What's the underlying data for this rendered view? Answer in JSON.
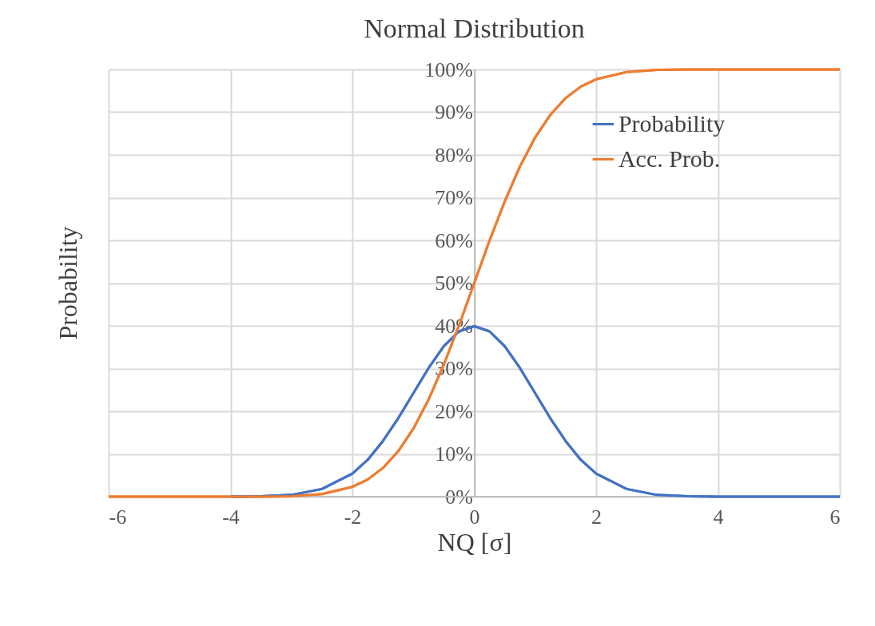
{
  "chart_data": {
    "type": "line",
    "title": "Normal Distribution",
    "xlabel": "NQ [σ]",
    "ylabel": "Probability",
    "x": [
      -6,
      -5,
      -4,
      -3.5,
      -3,
      -2.5,
      -2,
      -1.75,
      -1.5,
      -1.25,
      -1,
      -0.75,
      -0.5,
      -0.25,
      0,
      0.25,
      0.5,
      0.75,
      1,
      1.25,
      1.5,
      1.75,
      2,
      2.5,
      3,
      3.5,
      4,
      5,
      6
    ],
    "series": [
      {
        "name": "Probability",
        "color": "#4472c4",
        "values": [
          null,
          null,
          0,
          0.1,
          0.4,
          1.8,
          5.4,
          8.6,
          13.0,
          18.3,
          24.2,
          30.1,
          35.2,
          38.7,
          39.9,
          38.7,
          35.2,
          30.1,
          24.2,
          18.3,
          13.0,
          8.6,
          5.4,
          1.8,
          0.4,
          0.1,
          0,
          0,
          0
        ]
      },
      {
        "name": "Acc. Prob.",
        "color": "#ed7d31",
        "values": [
          0,
          0,
          0,
          0,
          0.1,
          0.6,
          2.3,
          4.0,
          6.7,
          10.6,
          15.9,
          22.7,
          30.9,
          40.1,
          50,
          59.9,
          69.1,
          77.3,
          84.1,
          89.4,
          93.3,
          96.0,
          97.7,
          99.4,
          99.9,
          100,
          100,
          100,
          100
        ]
      }
    ],
    "xlim": [
      -6,
      6
    ],
    "xticks": [
      -6,
      -4,
      -2,
      0,
      2,
      4,
      6
    ],
    "ylim": [
      0,
      100
    ],
    "yticks": [
      {
        "value": 0,
        "label": "0%"
      },
      {
        "value": 10,
        "label": "10%"
      },
      {
        "value": 20,
        "label": "20%"
      },
      {
        "value": 30,
        "label": "30%"
      },
      {
        "value": 40,
        "label": "40%"
      },
      {
        "value": 50,
        "label": "50%"
      },
      {
        "value": 60,
        "label": "60%"
      },
      {
        "value": 70,
        "label": "70%"
      },
      {
        "value": 80,
        "label": "80%"
      },
      {
        "value": 90,
        "label": "90%"
      },
      {
        "value": 100,
        "label": "100%"
      }
    ],
    "grid": true,
    "legend": "top right",
    "marker": "none",
    "line_style": "solid"
  }
}
